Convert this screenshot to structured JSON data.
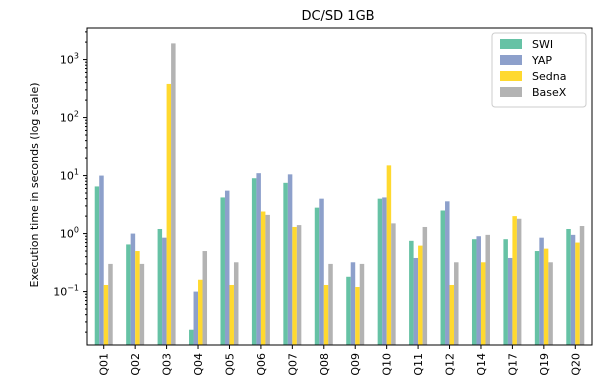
{
  "chart_data": {
    "type": "bar",
    "title": "DC/SD 1GB",
    "xlabel": "",
    "ylabel": "Execution time in seconds (log scale)",
    "yscale": "log",
    "ylim": [
      0.012,
      3500
    ],
    "yticks": [
      {
        "value": 0.1,
        "base": "10",
        "exp": "−1"
      },
      {
        "value": 1,
        "base": "10",
        "exp": "0"
      },
      {
        "value": 10,
        "base": "10",
        "exp": "1"
      },
      {
        "value": 100,
        "base": "10",
        "exp": "2"
      },
      {
        "value": 1000,
        "base": "10",
        "exp": "3"
      }
    ],
    "legend_position": "top-right",
    "grid": false,
    "categories": [
      "Q01",
      "Q02",
      "Q03",
      "Q04",
      "Q05",
      "Q06",
      "Q07",
      "Q08",
      "Q09",
      "Q10",
      "Q11",
      "Q12",
      "Q14",
      "Q17",
      "Q19",
      "Q20"
    ],
    "series": [
      {
        "name": "SWI",
        "color": "#66c2a5",
        "values": [
          6.5,
          0.65,
          1.2,
          0.022,
          4.2,
          9.0,
          7.5,
          2.8,
          0.18,
          4.0,
          0.75,
          2.5,
          0.8,
          0.8,
          0.5,
          1.2
        ]
      },
      {
        "name": "YAP",
        "color": "#8da0cb",
        "values": [
          10.0,
          1.0,
          0.85,
          0.1,
          5.5,
          11.0,
          10.5,
          4.0,
          0.32,
          4.2,
          0.38,
          3.6,
          0.9,
          0.38,
          0.85,
          0.95
        ]
      },
      {
        "name": "Sedna",
        "color": "#ffd92f",
        "values": [
          0.13,
          0.5,
          380,
          0.16,
          0.13,
          2.4,
          1.3,
          0.13,
          0.12,
          15.0,
          0.62,
          0.13,
          0.32,
          2.0,
          0.55,
          0.7
        ]
      },
      {
        "name": "BaseX",
        "color": "#b3b3b3",
        "values": [
          0.3,
          0.3,
          1900,
          0.5,
          0.32,
          2.1,
          1.4,
          0.3,
          0.3,
          1.5,
          1.3,
          0.32,
          0.95,
          1.8,
          0.32,
          1.35
        ]
      }
    ]
  }
}
